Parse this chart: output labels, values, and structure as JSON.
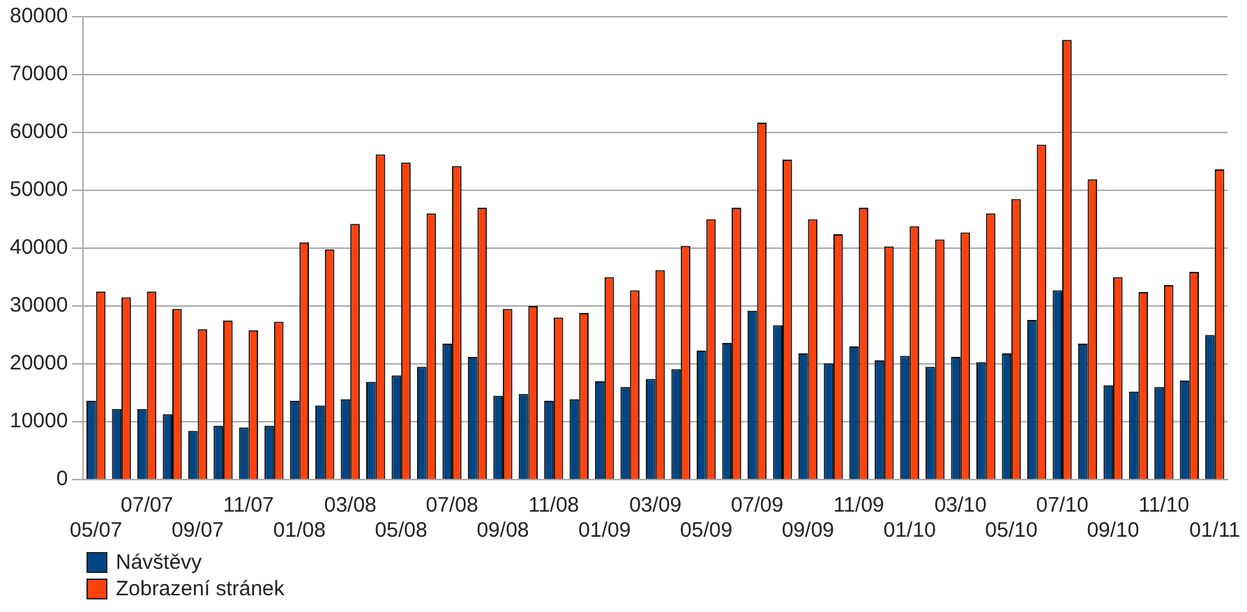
{
  "chart_data": {
    "type": "bar",
    "categories": [
      "05/07",
      null,
      "07/07",
      null,
      "09/07",
      null,
      "11/07",
      null,
      "01/08",
      null,
      "03/08",
      null,
      "05/08",
      null,
      "07/08",
      null,
      "09/08",
      null,
      "11/08",
      null,
      "01/09",
      null,
      "03/09",
      null,
      "05/09",
      null,
      "07/09",
      null,
      "09/09",
      null,
      "11/09",
      null,
      "01/10",
      null,
      "03/10",
      null,
      "05/10",
      null,
      "07/10",
      null,
      "09/10",
      null,
      "11/10",
      null,
      "01/11"
    ],
    "series": [
      {
        "name": "Návštěvy",
        "color": "#004586",
        "values": [
          13600,
          12200,
          12200,
          11300,
          8400,
          9300,
          9000,
          9300,
          13600,
          12800,
          13900,
          16900,
          18000,
          19500,
          23500,
          21200,
          14500,
          14800,
          13600,
          13900,
          17000,
          16000,
          17400,
          19100,
          22300,
          23600,
          29200,
          26700,
          21800,
          20100,
          23000,
          20600,
          21400,
          19500,
          21200,
          20300,
          21800,
          27600,
          32700,
          23500,
          16300,
          15200,
          16000,
          17100,
          25000
        ]
      },
      {
        "name": "Zobrazení stránek",
        "color": "#ff420e",
        "values": [
          32500,
          31500,
          32500,
          29500,
          26000,
          27500,
          25800,
          27300,
          41000,
          39800,
          44200,
          56200,
          54800,
          46000,
          54200,
          47000,
          29500,
          30000,
          28000,
          28800,
          35000,
          32700,
          36200,
          40400,
          45000,
          47000,
          61700,
          55300,
          45000,
          42400,
          47000,
          40300,
          43800,
          41500,
          42700,
          46000,
          48500,
          57900,
          76000,
          51900,
          35000,
          32400,
          33600,
          35900,
          53600
        ]
      }
    ],
    "ylim": [
      0,
      80000
    ],
    "yticks": [
      0,
      10000,
      20000,
      30000,
      40000,
      50000,
      60000,
      70000,
      80000
    ],
    "grid": "y",
    "legend": "bottom"
  }
}
